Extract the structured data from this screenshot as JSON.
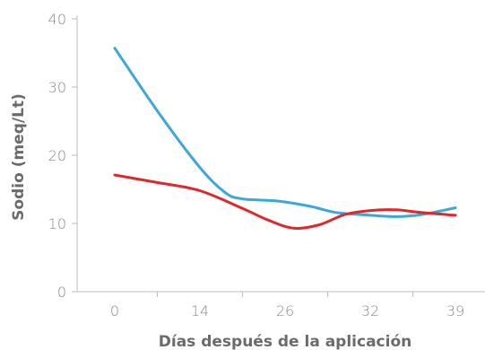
{
  "chart_data": {
    "type": "line",
    "title": "",
    "xlabel": "Días después de la aplicación",
    "ylabel": "Sodio (meq/Lt)",
    "categories": [
      "0",
      "14",
      "26",
      "32",
      "39"
    ],
    "xlim": [
      -0.5,
      4.5
    ],
    "ylim": [
      0,
      40
    ],
    "yticks": [
      0,
      10,
      20,
      30,
      40
    ],
    "grid": false,
    "series": [
      {
        "color": "#3aa8d8",
        "x": [
          0.0,
          0.5,
          1.0,
          1.3,
          1.5,
          1.9,
          2.3,
          2.6,
          3.0,
          3.3,
          3.6,
          4.0
        ],
        "y": [
          35.7,
          26.5,
          18.2,
          14.5,
          13.6,
          13.3,
          12.5,
          11.6,
          11.2,
          11.0,
          11.3,
          12.3
        ]
      },
      {
        "color": "#e0282c",
        "x": [
          0.0,
          0.5,
          1.0,
          1.5,
          1.8,
          2.1,
          2.4,
          2.7,
          3.0,
          3.3,
          3.6,
          4.0
        ],
        "y": [
          17.1,
          16.0,
          14.8,
          12.2,
          10.5,
          9.3,
          9.8,
          11.3,
          11.9,
          12.0,
          11.6,
          11.2
        ]
      }
    ]
  }
}
